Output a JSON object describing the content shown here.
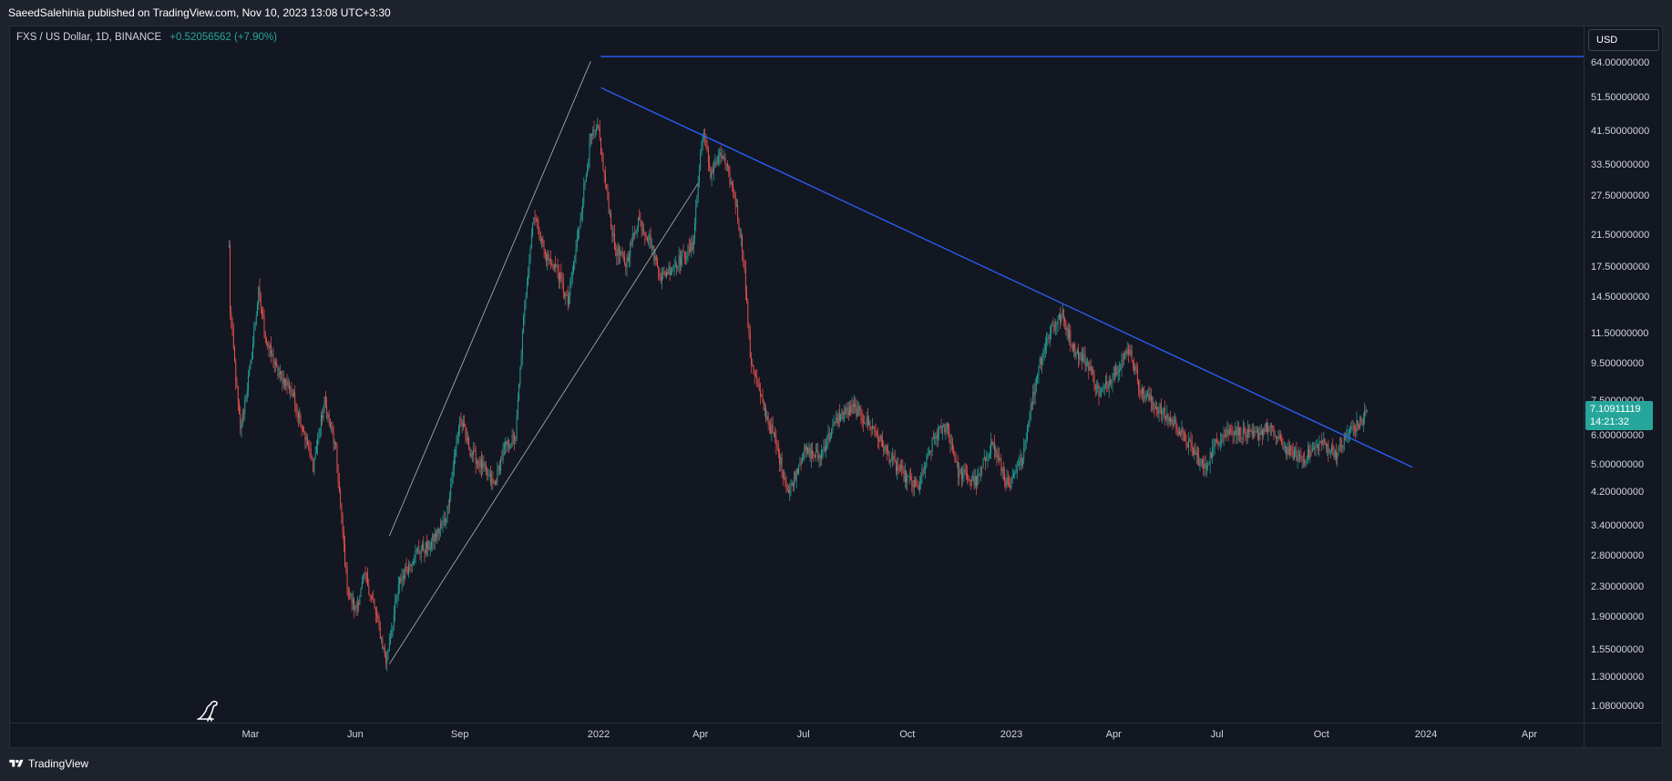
{
  "header": {
    "publish_text": "SaeedSalehinia published on TradingView.com, Nov 10, 2023 13:08 UTC+3:30"
  },
  "legend": {
    "symbol_text": "FXS / US Dollar, 1D, BINANCE",
    "change_text": "+0.52056562 (+7.90%)"
  },
  "currency_button": "USD",
  "price_axis": {
    "labels": [
      "64.00000000",
      "51.50000000",
      "41.50000000",
      "33.50000000",
      "27.50000000",
      "21.50000000",
      "17.50000000",
      "14.50000000",
      "11.50000000",
      "9.50000000",
      "7.50000000",
      "6.00000000",
      "5.00000000",
      "4.20000000",
      "3.40000000",
      "2.80000000",
      "2.30000000",
      "1.90000000",
      "1.55000000",
      "1.30000000",
      "1.08000000"
    ]
  },
  "current_price": {
    "price": "7.10911119",
    "countdown": "14:21:32"
  },
  "time_axis": {
    "labels": [
      "Mar",
      "Jun",
      "Sep",
      "2022",
      "Apr",
      "Jul",
      "Oct",
      "2023",
      "Apr",
      "Jul",
      "Oct",
      "2024",
      "Apr"
    ]
  },
  "footer": {
    "brand": "TradingView"
  },
  "colors": {
    "background": "#131722",
    "up": "#26a69a",
    "down": "#ef5350",
    "trendline": "#2962ff",
    "channel": "#b2b5be"
  },
  "chart_data": {
    "type": "candlestick",
    "scale": "log",
    "symbol": "FXS / US Dollar",
    "interval": "1D",
    "exchange": "BINANCE",
    "ylim": [
      1.0,
      70.0
    ],
    "close_path": [
      [
        "2021-02-10",
        20.0
      ],
      [
        "2021-02-11",
        13.5
      ],
      [
        "2021-02-20",
        6.2
      ],
      [
        "2021-03-01",
        9.5
      ],
      [
        "2021-03-08",
        15.0
      ],
      [
        "2021-03-15",
        11.0
      ],
      [
        "2021-03-25",
        9.0
      ],
      [
        "2021-04-05",
        8.2
      ],
      [
        "2021-04-15",
        6.5
      ],
      [
        "2021-04-25",
        5.0
      ],
      [
        "2021-05-05",
        7.5
      ],
      [
        "2021-05-15",
        5.5
      ],
      [
        "2021-05-25",
        2.3
      ],
      [
        "2021-06-01",
        2.0
      ],
      [
        "2021-06-10",
        2.5
      ],
      [
        "2021-06-20",
        1.9
      ],
      [
        "2021-06-28",
        1.45
      ],
      [
        "2021-07-10",
        2.4
      ],
      [
        "2021-07-25",
        2.9
      ],
      [
        "2021-08-05",
        3.0
      ],
      [
        "2021-08-20",
        3.6
      ],
      [
        "2021-09-01",
        6.8
      ],
      [
        "2021-09-10",
        5.5
      ],
      [
        "2021-09-20",
        5.0
      ],
      [
        "2021-10-01",
        4.4
      ],
      [
        "2021-10-10",
        5.6
      ],
      [
        "2021-10-20",
        6.0
      ],
      [
        "2021-10-28",
        14.0
      ],
      [
        "2021-11-05",
        25.0
      ],
      [
        "2021-11-15",
        19.0
      ],
      [
        "2021-11-25",
        17.5
      ],
      [
        "2021-12-05",
        14.0
      ],
      [
        "2021-12-15",
        23.0
      ],
      [
        "2021-12-25",
        40.0
      ],
      [
        "2022-01-01",
        42.0
      ],
      [
        "2022-01-05",
        33.0
      ],
      [
        "2022-01-15",
        20.0
      ],
      [
        "2022-01-25",
        18.0
      ],
      [
        "2022-02-05",
        24.0
      ],
      [
        "2022-02-15",
        21.0
      ],
      [
        "2022-02-25",
        16.5
      ],
      [
        "2022-03-10",
        18.0
      ],
      [
        "2022-03-25",
        20.0
      ],
      [
        "2022-04-03",
        42.0
      ],
      [
        "2022-04-10",
        32.0
      ],
      [
        "2022-04-20",
        36.0
      ],
      [
        "2022-05-01",
        28.0
      ],
      [
        "2022-05-09",
        19.0
      ],
      [
        "2022-05-15",
        10.0
      ],
      [
        "2022-05-25",
        7.5
      ],
      [
        "2022-06-05",
        6.0
      ],
      [
        "2022-06-18",
        4.2
      ],
      [
        "2022-07-01",
        5.5
      ],
      [
        "2022-07-15",
        5.3
      ],
      [
        "2022-08-01",
        6.8
      ],
      [
        "2022-08-15",
        7.2
      ],
      [
        "2022-09-01",
        6.3
      ],
      [
        "2022-09-20",
        5.0
      ],
      [
        "2022-10-10",
        4.3
      ],
      [
        "2022-10-25",
        6.0
      ],
      [
        "2022-11-05",
        6.5
      ],
      [
        "2022-11-15",
        4.8
      ],
      [
        "2022-12-01",
        4.5
      ],
      [
        "2022-12-15",
        5.8
      ],
      [
        "2022-12-30",
        4.3
      ],
      [
        "2023-01-10",
        5.2
      ],
      [
        "2023-01-25",
        9.5
      ],
      [
        "2023-02-05",
        12.0
      ],
      [
        "2023-02-15",
        13.0
      ],
      [
        "2023-02-25",
        10.5
      ],
      [
        "2023-03-10",
        9.5
      ],
      [
        "2023-03-20",
        7.8
      ],
      [
        "2023-04-01",
        9.0
      ],
      [
        "2023-04-15",
        10.5
      ],
      [
        "2023-04-25",
        8.0
      ],
      [
        "2023-05-10",
        7.2
      ],
      [
        "2023-05-25",
        6.5
      ],
      [
        "2023-06-10",
        5.5
      ],
      [
        "2023-06-20",
        4.9
      ],
      [
        "2023-07-01",
        5.9
      ],
      [
        "2023-07-15",
        6.3
      ],
      [
        "2023-08-01",
        6.0
      ],
      [
        "2023-08-15",
        6.4
      ],
      [
        "2023-09-01",
        5.5
      ],
      [
        "2023-09-15",
        5.2
      ],
      [
        "2023-10-01",
        5.8
      ],
      [
        "2023-10-15",
        5.4
      ],
      [
        "2023-10-25",
        6.2
      ],
      [
        "2023-11-05",
        6.6
      ],
      [
        "2023-11-10",
        7.11
      ]
    ],
    "drawings": {
      "horizontal_line": {
        "price": 67.0,
        "start": "2022-01-03"
      },
      "descending_trendline": {
        "from": [
          "2022-01-03",
          55.0
        ],
        "to": [
          "2023-12-20",
          4.95
        ]
      },
      "channel_upper": {
        "from": [
          "2021-07-01",
          3.2
        ],
        "to": [
          "2021-12-25",
          65.0
        ]
      },
      "channel_lower": {
        "from": [
          "2021-07-01",
          1.42
        ],
        "to": [
          "2022-03-30",
          30.0
        ]
      }
    }
  }
}
